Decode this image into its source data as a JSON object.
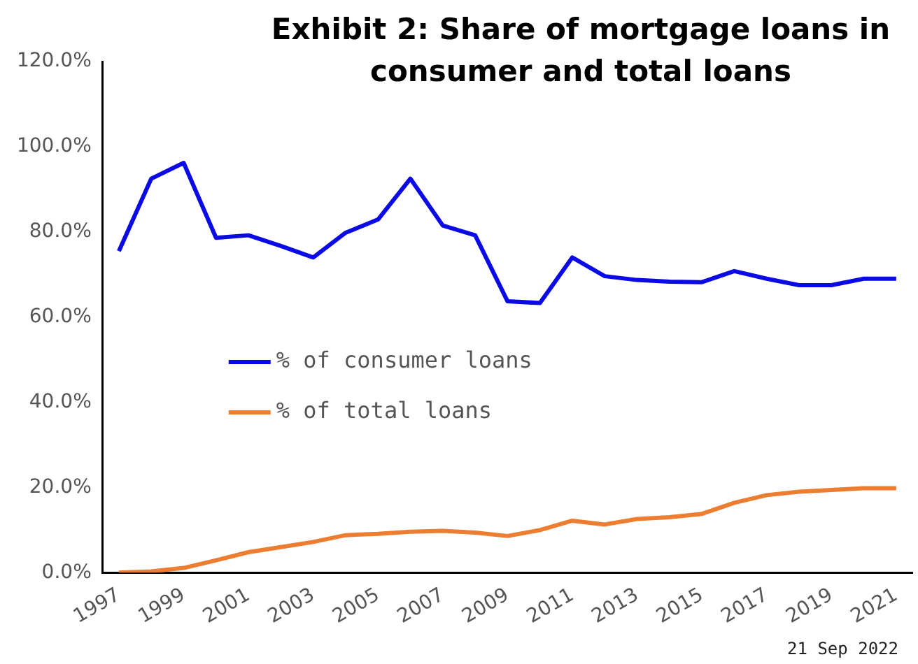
{
  "chart_data": {
    "type": "line",
    "title": "Exhibit 2: Share of mortgage loans in consumer and total loans",
    "categories": [
      "1997",
      null,
      "1999",
      null,
      "2001",
      null,
      "2003",
      null,
      "2005",
      null,
      "2007",
      null,
      "2009",
      null,
      "2011",
      null,
      "2013",
      null,
      "2015",
      null,
      "2017",
      null,
      "2019",
      null,
      "2021"
    ],
    "series": [
      {
        "name": "% of consumer loans",
        "color": "#0a0ae6",
        "values": [
          75.5,
          92.5,
          96.2,
          78.6,
          79.2,
          76.7,
          74,
          79.8,
          82.9,
          92.5,
          81.5,
          79.2,
          63.7,
          63.3,
          74,
          69.6,
          68.7,
          68.3,
          68.2,
          70.8,
          69,
          67.5,
          67.5,
          69,
          69
        ]
      },
      {
        "name": "% of total loans",
        "color": "#ed7d31",
        "values": [
          0,
          0.3,
          1.1,
          2.9,
          4.8,
          6,
          7.2,
          8.8,
          9.1,
          9.6,
          9.8,
          9.4,
          8.6,
          10,
          12.2,
          11.3,
          12.6,
          13,
          13.8,
          16.4,
          18.2,
          19,
          19.4,
          19.8,
          19.8
        ]
      }
    ],
    "ylim": [
      0,
      120
    ],
    "yticks": [
      {
        "value": 0,
        "label": "0.0%"
      },
      {
        "value": 20,
        "label": "20.0%"
      },
      {
        "value": 40,
        "label": "40.0%"
      },
      {
        "value": 60,
        "label": "60.0%"
      },
      {
        "value": 80,
        "label": "80.0%"
      },
      {
        "value": 100,
        "label": "100.0%"
      },
      {
        "value": 120,
        "label": "120.0%"
      }
    ],
    "grid": false,
    "legend": "center",
    "marker": "none",
    "line_style": "solid",
    "annotations": [
      "21 Sep 2022"
    ]
  }
}
